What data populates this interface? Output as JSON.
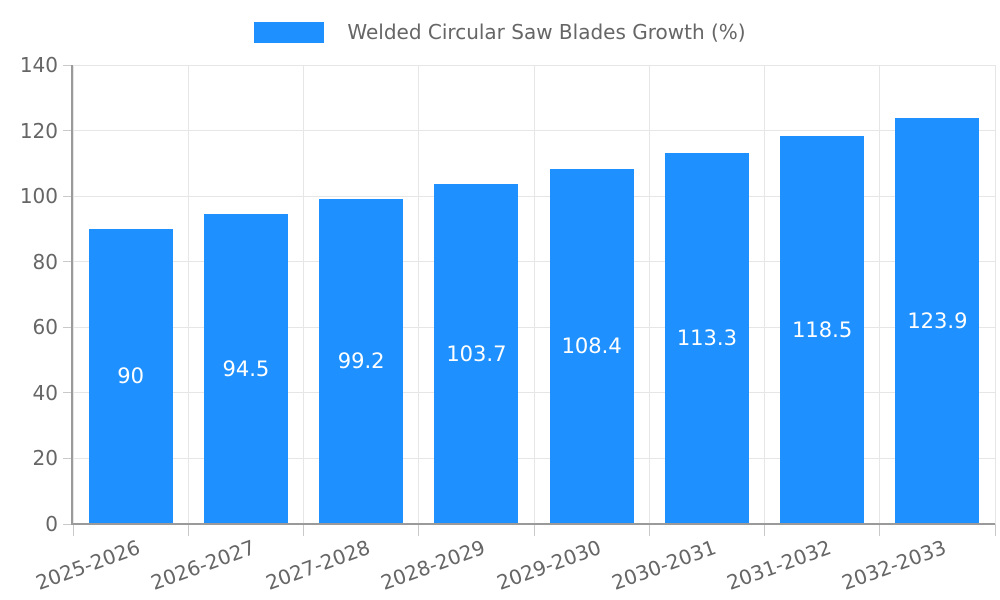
{
  "legend": {
    "label": "Welded Circular Saw Blades Growth (%)"
  },
  "chart_data": {
    "type": "bar",
    "title": "Welded Circular Saw Blades Growth (%)",
    "categories": [
      "2025-2026",
      "2026-2027",
      "2027-2028",
      "2028-2029",
      "2029-2030",
      "2030-2031",
      "2031-2032",
      "2032-2033"
    ],
    "values": [
      90,
      94.5,
      99.2,
      103.7,
      108.4,
      113.3,
      118.5,
      123.9
    ],
    "value_labels": [
      "90",
      "94.5",
      "99.2",
      "103.7",
      "108.4",
      "113.3",
      "118.5",
      "123.9"
    ],
    "yticks": [
      0,
      20,
      40,
      60,
      80,
      100,
      120,
      140
    ],
    "ylim": [
      0,
      140
    ],
    "xlabel": "",
    "ylabel": "",
    "grid": "on",
    "legend_position": "top-center",
    "x_label_rotation_deg": -20,
    "colors": {
      "bar": "#1E90FF",
      "value_label": "#ffffff",
      "tick_label": "#666666",
      "legend_text": "#666666",
      "gridline": "#e6e6e6",
      "tick_mark": "#c9c9c9",
      "axis_spine": "#9a9a9a",
      "background": "#ffffff"
    }
  }
}
